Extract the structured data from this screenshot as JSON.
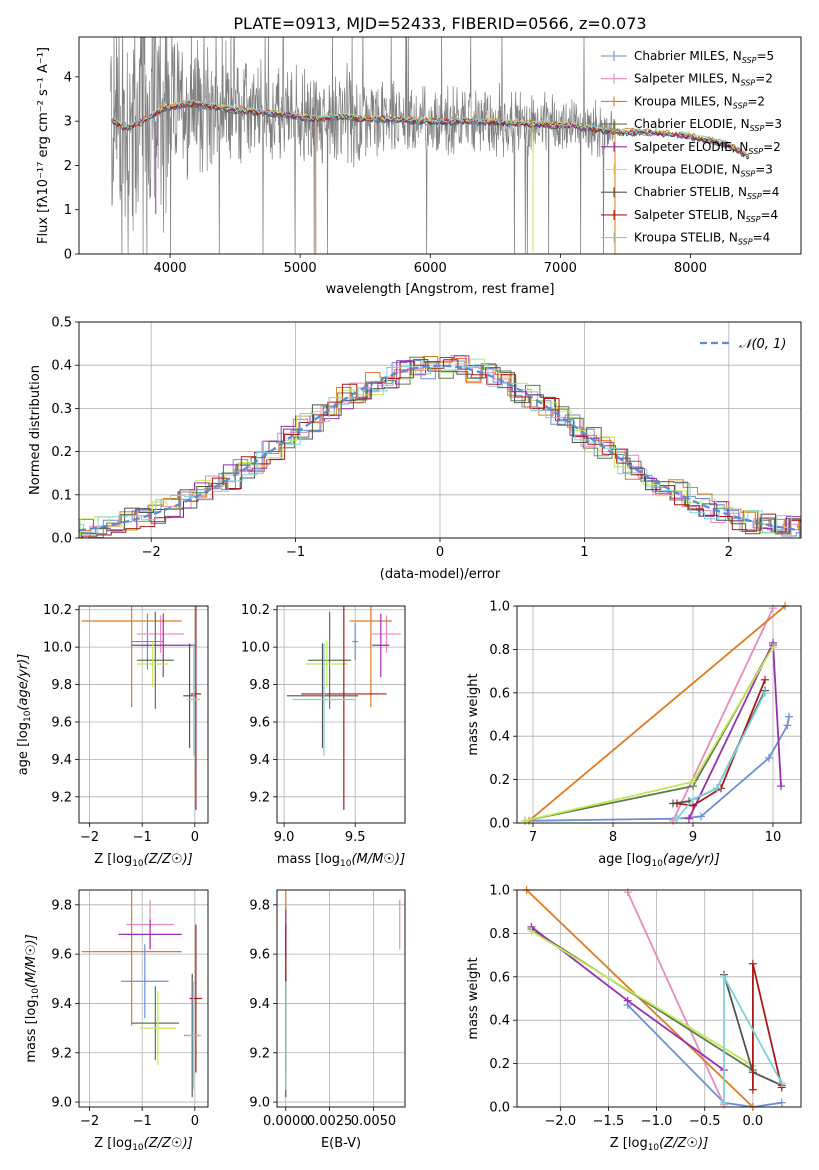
{
  "title": "PLATE=0913, MJD=52433, FIBERID=0566, z=0.073",
  "colors": {
    "chabrier_miles": "#6b8fd6",
    "salpeter_miles": "#e88abb",
    "kroupa_miles": "#e07b20",
    "chabrier_elodie": "#5a7a52",
    "salpeter_elodie": "#9a2fb0",
    "kroupa_elodie": "#c5e858",
    "chabrier_stelib": "#555555",
    "salpeter_stelib": "#aa1a1a",
    "kroupa_stelib": "#7dd4d8",
    "data": "#808080",
    "grid": "#b0b0b0"
  },
  "chart_data": [
    {
      "id": "spectrum",
      "type": "line",
      "xlabel": "wavelength [Angstrom, rest frame]",
      "ylabel": "Flux [fλ10⁻¹⁷ erg cm⁻² s⁻¹ A⁻¹]",
      "xlim": [
        3300,
        8850
      ],
      "ylim": [
        0,
        4.9
      ],
      "xticks": [
        4000,
        5000,
        6000,
        7000,
        8000
      ],
      "yticks": [
        0,
        1,
        2,
        3,
        4
      ],
      "grid": false,
      "legend_position": "right",
      "legend": [
        {
          "key": "chabrier_miles",
          "label": "Chabrier MILES, N",
          "sub": "SSP",
          "tail": "=5"
        },
        {
          "key": "salpeter_miles",
          "label": "Salpeter MILES, N",
          "sub": "SSP",
          "tail": "=2"
        },
        {
          "key": "kroupa_miles",
          "label": "Kroupa MILES, N",
          "sub": "SSP",
          "tail": "=2"
        },
        {
          "key": "chabrier_elodie",
          "label": "Chabrier ELODIE, N",
          "sub": "SSP",
          "tail": "=3"
        },
        {
          "key": "salpeter_elodie",
          "label": "Salpeter ELODIE, N",
          "sub": "SSP",
          "tail": "=2"
        },
        {
          "key": "kroupa_elodie",
          "label": "Kroupa ELODIE, N",
          "sub": "SSP",
          "tail": "=3"
        },
        {
          "key": "chabrier_stelib",
          "label": "Chabrier STELIB, N",
          "sub": "SSP",
          "tail": "=4"
        },
        {
          "key": "salpeter_stelib",
          "label": "Salpeter STELIB, N",
          "sub": "SSP",
          "tail": "=4"
        },
        {
          "key": "kroupa_stelib",
          "label": "Kroupa STELIB, N",
          "sub": "SSP",
          "tail": "=4"
        }
      ],
      "data_range": [
        3540,
        7420
      ],
      "model_continuum": [
        [
          3540,
          3.05
        ],
        [
          3650,
          2.85
        ],
        [
          3750,
          2.95
        ],
        [
          3850,
          3.1
        ],
        [
          3950,
          3.3
        ],
        [
          4050,
          3.35
        ],
        [
          4150,
          3.4
        ],
        [
          4300,
          3.35
        ],
        [
          4500,
          3.25
        ],
        [
          4700,
          3.2
        ],
        [
          4900,
          3.15
        ],
        [
          5100,
          3.05
        ],
        [
          5300,
          3.1
        ],
        [
          5500,
          3.05
        ],
        [
          5700,
          3.05
        ],
        [
          5900,
          3.0
        ],
        [
          6100,
          3.0
        ],
        [
          6300,
          3.0
        ],
        [
          6500,
          2.98
        ],
        [
          6700,
          2.95
        ],
        [
          6900,
          2.92
        ],
        [
          7100,
          2.9
        ],
        [
          7300,
          2.8
        ],
        [
          7500,
          2.75
        ],
        [
          7700,
          2.75
        ],
        [
          7900,
          2.7
        ],
        [
          8100,
          2.6
        ],
        [
          8300,
          2.45
        ],
        [
          8450,
          2.2
        ]
      ]
    },
    {
      "id": "residual_hist",
      "type": "step",
      "xlabel": "(data-model)/error",
      "ylabel": "Normed distribution",
      "xlim": [
        -2.5,
        2.5
      ],
      "ylim": [
        0,
        0.5
      ],
      "xticks": [
        -2,
        -1,
        0,
        1,
        2
      ],
      "yticks": [
        0.0,
        0.1,
        0.2,
        0.3,
        0.4,
        0.5
      ],
      "grid": true,
      "legend": {
        "label": "𝒩(0, 1)",
        "position": "top-right"
      },
      "gaussian": {
        "mu": 0,
        "sigma": 1
      }
    },
    {
      "id": "age_vs_Z",
      "type": "errorbar",
      "xlabel": "Z [log10(Z/Z☉)]",
      "ylabel": "age  [log10(age/yr)]",
      "xlim": [
        -2.2,
        0.25
      ],
      "ylim": [
        9.06,
        10.22
      ],
      "xticks": [
        -2,
        -1,
        0
      ],
      "yticks": [
        9.2,
        9.4,
        9.6,
        9.8,
        10.0,
        10.2
      ],
      "grid": true,
      "points": [
        {
          "key": "chabrier_miles",
          "x": -0.9,
          "xerr": 0.3,
          "y": 10.03,
          "yerr": 0.15
        },
        {
          "key": "salpeter_miles",
          "x": -0.65,
          "xerr": 0.45,
          "y": 10.07,
          "yerr": 0.1
        },
        {
          "key": "kroupa_miles",
          "x": -1.2,
          "xerr": 0.95,
          "y": 10.14,
          "yerr": 0.46
        },
        {
          "key": "chabrier_elodie",
          "x": -0.75,
          "xerr": 0.35,
          "y": 9.93,
          "yerr": 0.26
        },
        {
          "key": "salpeter_elodie",
          "x": -0.6,
          "xerr": 0.6,
          "y": 10.01,
          "yerr": 0.17
        },
        {
          "key": "kroupa_elodie",
          "x": -0.8,
          "xerr": 0.3,
          "y": 9.91,
          "yerr": 0.12
        },
        {
          "key": "chabrier_stelib",
          "x": -0.1,
          "xerr": 0.12,
          "y": 9.74,
          "yerr": 0.28
        },
        {
          "key": "salpeter_stelib",
          "x": 0.02,
          "xerr": 0.1,
          "y": 9.75,
          "yerr": 0.62
        },
        {
          "key": "kroupa_stelib",
          "x": -0.02,
          "xerr": 0.12,
          "y": 9.72,
          "yerr": 0.3
        }
      ]
    },
    {
      "id": "age_vs_mass",
      "type": "errorbar",
      "xlabel": "mass [log10(M/M☉)]",
      "ylabel": "",
      "xlim": [
        8.95,
        9.85
      ],
      "ylim": [
        9.06,
        10.22
      ],
      "xticks": [
        9.0,
        9.5
      ],
      "yticks": [
        9.2,
        9.4,
        9.6,
        9.8,
        10.0,
        10.2
      ],
      "grid": true,
      "points": [
        {
          "key": "chabrier_miles",
          "x": 9.5,
          "xerr": 0.02,
          "y": 10.03,
          "yerr": 0.1
        },
        {
          "key": "salpeter_miles",
          "x": 9.72,
          "xerr": 0.1,
          "y": 10.07,
          "yerr": 0.1
        },
        {
          "key": "kroupa_miles",
          "x": 9.61,
          "xerr": 0.15,
          "y": 10.14,
          "yerr": 0.46
        },
        {
          "key": "chabrier_elodie",
          "x": 9.32,
          "xerr": 0.15,
          "y": 9.93,
          "yerr": 0.26
        },
        {
          "key": "salpeter_elodie",
          "x": 9.68,
          "xerr": 0.06,
          "y": 10.01,
          "yerr": 0.17
        },
        {
          "key": "kroupa_elodie",
          "x": 9.3,
          "xerr": 0.15,
          "y": 9.91,
          "yerr": 0.12
        },
        {
          "key": "chabrier_stelib",
          "x": 9.27,
          "xerr": 0.25,
          "y": 9.74,
          "yerr": 0.28
        },
        {
          "key": "salpeter_stelib",
          "x": 9.42,
          "xerr": 0.3,
          "y": 9.75,
          "yerr": 0.62
        },
        {
          "key": "kroupa_stelib",
          "x": 9.28,
          "xerr": 0.22,
          "y": 9.72,
          "yerr": 0.3
        }
      ]
    },
    {
      "id": "massweight_vs_age",
      "type": "line",
      "xlabel": "age  [log10(age/yr)]",
      "ylabel": "mass weight",
      "xlim": [
        6.8,
        10.35
      ],
      "ylim": [
        0,
        1
      ],
      "xticks": [
        7,
        8,
        9,
        10
      ],
      "yticks": [
        0.0,
        0.2,
        0.4,
        0.6,
        0.8,
        1.0
      ],
      "grid": true,
      "series": [
        {
          "key": "chabrier_miles",
          "x": [
            6.9,
            8.8,
            9.1,
            9.95,
            10.18,
            10.2
          ],
          "y": [
            0.01,
            0.02,
            0.03,
            0.3,
            0.45,
            0.49
          ]
        },
        {
          "key": "salpeter_miles",
          "x": [
            8.75,
            10.0
          ],
          "y": [
            0.01,
            0.99
          ]
        },
        {
          "key": "kroupa_miles",
          "x": [
            6.95,
            10.15
          ],
          "y": [
            0.01,
            1.0
          ]
        },
        {
          "key": "chabrier_elodie",
          "x": [
            6.9,
            9.0,
            10.0
          ],
          "y": [
            0.01,
            0.17,
            0.82
          ]
        },
        {
          "key": "salpeter_elodie",
          "x": [
            8.95,
            10.0,
            10.1
          ],
          "y": [
            0.02,
            0.83,
            0.17
          ]
        },
        {
          "key": "kroupa_elodie",
          "x": [
            6.9,
            9.0,
            10.0
          ],
          "y": [
            0.01,
            0.19,
            0.81
          ]
        },
        {
          "key": "chabrier_stelib",
          "x": [
            8.75,
            8.95,
            9.3,
            9.9
          ],
          "y": [
            0.09,
            0.1,
            0.16,
            0.61
          ]
        },
        {
          "key": "salpeter_stelib",
          "x": [
            8.8,
            9.0,
            9.35,
            9.9
          ],
          "y": [
            0.09,
            0.08,
            0.16,
            0.66
          ]
        },
        {
          "key": "kroupa_stelib",
          "x": [
            8.8,
            9.0,
            9.3,
            9.9
          ],
          "y": [
            0.02,
            0.11,
            0.16,
            0.6
          ]
        }
      ]
    },
    {
      "id": "mass_vs_Z",
      "type": "errorbar",
      "xlabel": "Z [log10(Z/Z☉)]",
      "ylabel": "mass [log10(M/M☉)]",
      "xlim": [
        -2.2,
        0.25
      ],
      "ylim": [
        8.98,
        9.86
      ],
      "xticks": [
        -2,
        -1,
        0
      ],
      "yticks": [
        9.0,
        9.2,
        9.4,
        9.6,
        9.8
      ],
      "grid": true,
      "points": [
        {
          "key": "chabrier_miles",
          "x": -0.95,
          "xerr": 0.45,
          "y": 9.49,
          "yerr": 0.15
        },
        {
          "key": "salpeter_miles",
          "x": -0.85,
          "xerr": 0.45,
          "y": 9.72,
          "yerr": 0.1
        },
        {
          "key": "kroupa_miles",
          "x": -1.2,
          "xerr": 0.95,
          "y": 9.61,
          "yerr": 0.3
        },
        {
          "key": "chabrier_elodie",
          "x": -0.75,
          "xerr": 0.45,
          "y": 9.32,
          "yerr": 0.15
        },
        {
          "key": "salpeter_elodie",
          "x": -0.85,
          "xerr": 0.6,
          "y": 9.68,
          "yerr": 0.06
        },
        {
          "key": "kroupa_elodie",
          "x": -0.7,
          "xerr": 0.35,
          "y": 9.3,
          "yerr": 0.15
        },
        {
          "key": "chabrier_stelib",
          "x": -0.05,
          "xerr": 0.15,
          "y": 9.27,
          "yerr": 0.25
        },
        {
          "key": "salpeter_stelib",
          "x": 0.02,
          "xerr": 0.12,
          "y": 9.42,
          "yerr": 0.3
        },
        {
          "key": "kroupa_stelib",
          "x": -0.03,
          "xerr": 0.15,
          "y": 9.27,
          "yerr": 0.22
        }
      ]
    },
    {
      "id": "mass_vs_ebv",
      "type": "errorbar",
      "xlabel": "E(B-V)",
      "ylabel": "",
      "xlim": [
        -0.0005,
        0.0068
      ],
      "ylim": [
        8.98,
        9.86
      ],
      "xticks": [
        0.0,
        0.0025,
        0.005
      ],
      "xticklabels": [
        "0.0000",
        "0.0025",
        "0.0050"
      ],
      "yticks": [
        9.0,
        9.2,
        9.4,
        9.6,
        9.8
      ],
      "grid": true,
      "points": [
        {
          "key": "chabrier_miles",
          "x": 0.0,
          "xerr": 0,
          "y": 9.49,
          "yerr": 0.15
        },
        {
          "key": "salpeter_miles",
          "x": 0.0065,
          "xerr": 0,
          "y": 9.72,
          "yerr": 0.1
        },
        {
          "key": "kroupa_miles",
          "x": 0.0,
          "xerr": 0,
          "y": 9.61,
          "yerr": 0.3
        },
        {
          "key": "chabrier_elodie",
          "x": 0.0,
          "xerr": 0,
          "y": 9.32,
          "yerr": 0.15
        },
        {
          "key": "salpeter_elodie",
          "x": 0.0,
          "xerr": 0,
          "y": 9.68,
          "yerr": 0.1
        },
        {
          "key": "kroupa_elodie",
          "x": 0.0,
          "xerr": 0,
          "y": 9.3,
          "yerr": 0.15
        },
        {
          "key": "chabrier_stelib",
          "x": 0.0,
          "xerr": 0,
          "y": 9.27,
          "yerr": 0.25
        },
        {
          "key": "salpeter_stelib",
          "x": 0.0,
          "xerr": 0,
          "y": 9.42,
          "yerr": 0.3
        },
        {
          "key": "kroupa_stelib",
          "x": 0.0,
          "xerr": 0,
          "y": 9.27,
          "yerr": 0.22
        }
      ]
    },
    {
      "id": "massweight_vs_Z",
      "type": "line",
      "xlabel": "Z [log10(Z/Z☉)]",
      "ylabel": "mass weight",
      "xlim": [
        -2.45,
        0.5
      ],
      "ylim": [
        0,
        1
      ],
      "xticks": [
        -2.0,
        -1.5,
        -1.0,
        -0.5,
        0.0
      ],
      "xticklabels": [
        "−2.0",
        "−1.5",
        "−1.0",
        "−0.5",
        "0.0"
      ],
      "yticks": [
        0.0,
        0.2,
        0.4,
        0.6,
        0.8,
        1.0
      ],
      "grid": true,
      "series": [
        {
          "key": "chabrier_miles",
          "x": [
            -1.3,
            -0.3,
            0.0,
            0.3
          ],
          "y": [
            0.47,
            0.02,
            0.0,
            0.02
          ]
        },
        {
          "key": "salpeter_miles",
          "x": [
            -1.3,
            -0.3
          ],
          "y": [
            0.99,
            0.01
          ]
        },
        {
          "key": "kroupa_miles",
          "x": [
            -2.35,
            0.0
          ],
          "y": [
            1.0,
            0.0
          ]
        },
        {
          "key": "chabrier_elodie",
          "x": [
            -2.3,
            0.0
          ],
          "y": [
            0.82,
            0.17
          ]
        },
        {
          "key": "salpeter_elodie",
          "x": [
            -2.3,
            -1.3,
            -0.3
          ],
          "y": [
            0.83,
            0.49,
            0.17
          ]
        },
        {
          "key": "kroupa_elodie",
          "x": [
            -2.3,
            0.0
          ],
          "y": [
            0.81,
            0.19
          ]
        },
        {
          "key": "chabrier_stelib",
          "x": [
            -0.3,
            0.0,
            0.3
          ],
          "y": [
            0.61,
            0.16,
            0.1
          ]
        },
        {
          "key": "salpeter_stelib",
          "x": [
            0.0,
            0.0,
            0.3
          ],
          "y": [
            0.08,
            0.66,
            0.09
          ]
        },
        {
          "key": "kroupa_stelib",
          "x": [
            -0.3,
            -0.3,
            0.3
          ],
          "y": [
            0.02,
            0.6,
            0.11
          ]
        }
      ]
    }
  ]
}
